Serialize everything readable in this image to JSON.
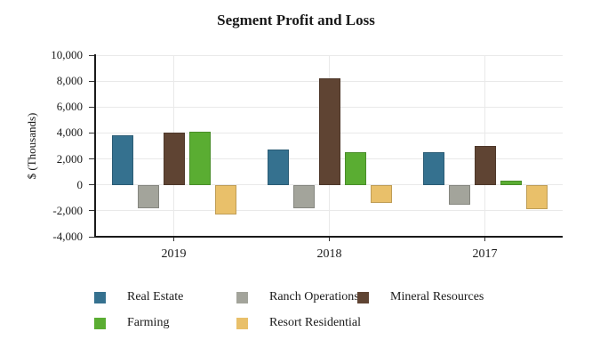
{
  "title": "Segment Profit and Loss",
  "chart_data": {
    "type": "bar",
    "title": "Segment Profit and Loss",
    "ylabel": "$ (Thousands)",
    "xlabel": "",
    "categories": [
      "2019",
      "2018",
      "2017"
    ],
    "series": [
      {
        "name": "Real Estate",
        "color": "#35718f",
        "values": [
          3800,
          2700,
          2500
        ]
      },
      {
        "name": "Ranch Operations",
        "color": "#a3a49b",
        "values": [
          -1800,
          -1800,
          -1500
        ]
      },
      {
        "name": "Mineral Resources",
        "color": "#5f4433",
        "values": [
          4000,
          8200,
          3000
        ]
      },
      {
        "name": "Farming",
        "color": "#5aad32",
        "values": [
          4100,
          2500,
          300
        ]
      },
      {
        "name": "Resort Residential",
        "color": "#e9c06a",
        "values": [
          -2300,
          -1400,
          -1900
        ]
      }
    ],
    "ylim": [
      -4000,
      10000
    ],
    "ytick_step": 2000,
    "ytick_labels": [
      "10,000",
      "8,000",
      "6,000",
      "4,000",
      "2,000",
      "0",
      "-2,000",
      "-4,000"
    ],
    "grid": true,
    "legend_position": "bottom",
    "legend_rows": [
      [
        "Real Estate",
        "Ranch Operations",
        "Mineral Resources"
      ],
      [
        "Farming",
        "Resort Residential"
      ]
    ]
  }
}
